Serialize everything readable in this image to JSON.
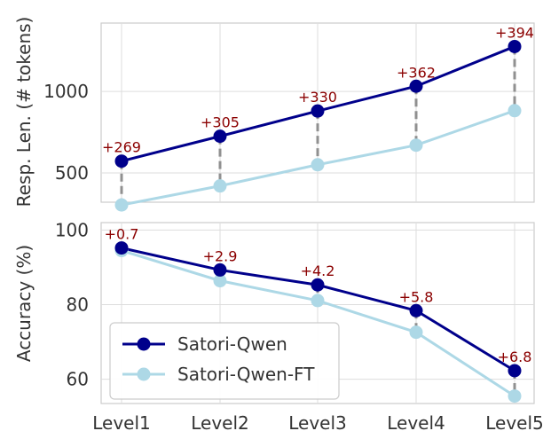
{
  "chart_data": [
    {
      "type": "line",
      "panel": "top",
      "categories": [
        "Level1",
        "Level2",
        "Level3",
        "Level4",
        "Level5"
      ],
      "ylabel": "Resp. Len. (# tokens)",
      "xlabel": "",
      "ylim": [
        320,
        1420
      ],
      "yticks": [
        500,
        1000
      ],
      "grid": "horizontal",
      "series": [
        {
          "name": "Satori-Qwen",
          "color": "#00008b",
          "values": [
            572,
            725,
            880,
            1032,
            1276
          ]
        },
        {
          "name": "Satori-Qwen-FT",
          "color": "#add8e6",
          "values": [
            303,
            420,
            550,
            670,
            882
          ]
        }
      ],
      "annotations": {
        "color": "#8b0000",
        "labels": [
          "+269",
          "+305",
          "+330",
          "+362",
          "+394"
        ]
      },
      "connector_color": "#909090"
    },
    {
      "type": "line",
      "panel": "bottom",
      "categories": [
        "Level1",
        "Level2",
        "Level3",
        "Level4",
        "Level5"
      ],
      "ylabel": "Accuracy (%)",
      "xlabel": "",
      "ylim": [
        53.5,
        102
      ],
      "yticks": [
        60,
        80,
        100
      ],
      "grid": "horizontal",
      "legend": "lower-left",
      "series": [
        {
          "name": "Satori-Qwen",
          "color": "#00008b",
          "values": [
            95.2,
            89.3,
            85.3,
            78.4,
            62.3
          ]
        },
        {
          "name": "Satori-Qwen-FT",
          "color": "#add8e6",
          "values": [
            94.5,
            86.4,
            81.1,
            72.6,
            55.5
          ]
        }
      ],
      "annotations": {
        "color": "#8b0000",
        "labels": [
          "+0.7",
          "+2.9",
          "+4.2",
          "+5.8",
          "+6.8"
        ]
      },
      "connector_color": "#909090"
    }
  ]
}
